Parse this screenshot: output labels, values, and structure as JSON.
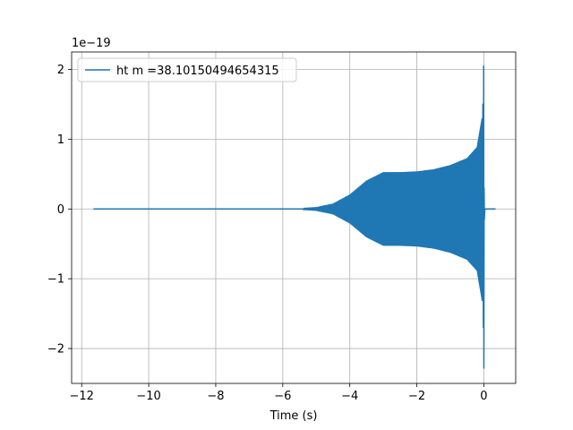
{
  "chart_data": {
    "type": "line",
    "title": "",
    "xlabel": "Time (s)",
    "ylabel": "",
    "y_offset_label": "1e−19",
    "xlim": [
      -12.3,
      0.95
    ],
    "ylim": [
      -2.5,
      2.25
    ],
    "grid": true,
    "legend_position": "upper left",
    "x_ticks": [
      -12,
      -10,
      -8,
      -6,
      -4,
      -2,
      0
    ],
    "x_tick_labels": [
      "−12",
      "−10",
      "−8",
      "−6",
      "−4",
      "−2",
      "0"
    ],
    "y_ticks": [
      -2,
      -1,
      0,
      1,
      2
    ],
    "y_tick_labels": [
      "−2",
      "−1",
      "0",
      "1",
      "2"
    ],
    "series": [
      {
        "name": "ht m =38.10150494654315",
        "color": "#1f77b4",
        "x_range": [
          -11.65,
          0.35
        ],
        "peak_time": 0.0,
        "peak_positive": 2.05,
        "peak_negative": -2.28,
        "envelope_time": [
          -11.65,
          -6.0,
          -5.5,
          -5.0,
          -4.5,
          -4.0,
          -3.5,
          -3.0,
          -2.5,
          -2.0,
          -1.5,
          -1.0,
          -0.5,
          -0.2,
          -0.05,
          0.0,
          0.05,
          0.35
        ],
        "envelope_amplitude": [
          0.0,
          0.0,
          0.005,
          0.02,
          0.07,
          0.2,
          0.4,
          0.52,
          0.52,
          0.53,
          0.56,
          0.62,
          0.72,
          0.88,
          1.3,
          2.05,
          0.0,
          0.0
        ]
      }
    ]
  },
  "legend": {
    "label": "ht m =38.10150494654315"
  }
}
